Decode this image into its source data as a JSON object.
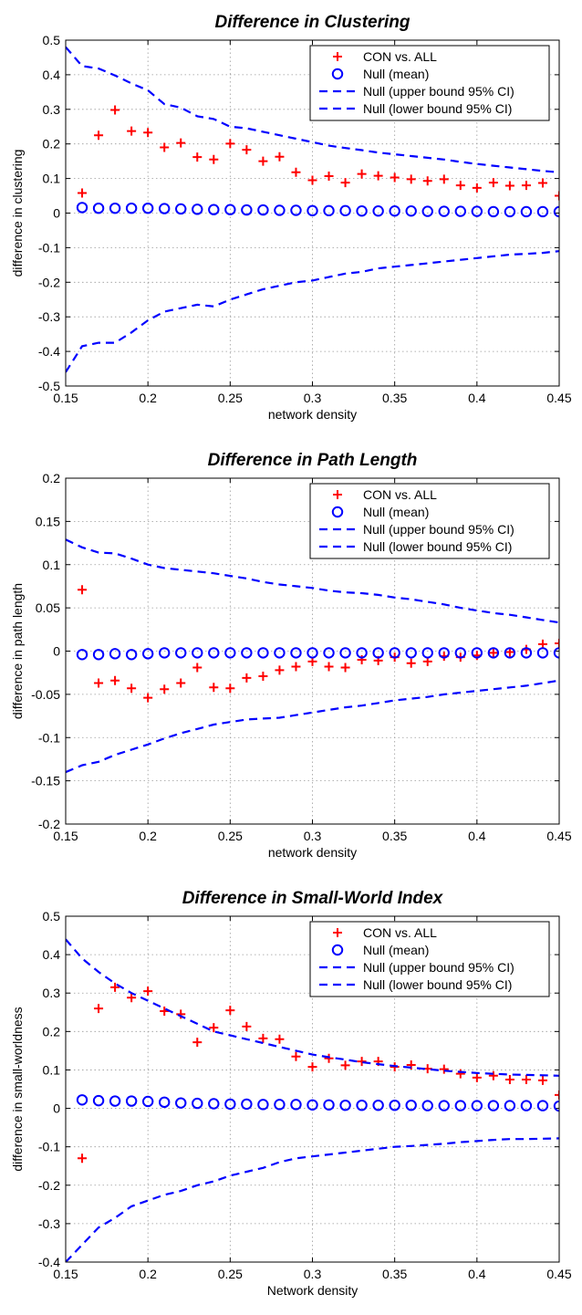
{
  "chart_data": [
    {
      "type": "scatter",
      "title": "Difference in Clustering",
      "xlabel": "network density",
      "ylabel": "difference in clustering",
      "xlim": [
        0.15,
        0.45
      ],
      "ylim": [
        -0.5,
        0.5
      ],
      "xticks": [
        "0.15",
        "0.2",
        "0.25",
        "0.3",
        "0.35",
        "0.4",
        "0.45"
      ],
      "yticks": [
        "-0.5",
        "-0.4",
        "-0.3",
        "-0.2",
        "-0.1",
        "0",
        "0.1",
        "0.2",
        "0.3",
        "0.4",
        "0.5"
      ],
      "grid": true,
      "legend_position": "top-right",
      "x": [
        0.16,
        0.17,
        0.18,
        0.19,
        0.2,
        0.21,
        0.22,
        0.23,
        0.24,
        0.25,
        0.26,
        0.27,
        0.28,
        0.29,
        0.3,
        0.31,
        0.32,
        0.33,
        0.34,
        0.35,
        0.36,
        0.37,
        0.38,
        0.39,
        0.4,
        0.41,
        0.42,
        0.43,
        0.44,
        0.45
      ],
      "series": [
        {
          "name": "CON vs. ALL",
          "marker": "plus",
          "color": "#ff0000",
          "values": [
            0.058,
            0.225,
            0.298,
            0.237,
            0.233,
            0.19,
            0.203,
            0.162,
            0.155,
            0.201,
            0.183,
            0.15,
            0.163,
            0.118,
            0.095,
            0.107,
            0.088,
            0.113,
            0.108,
            0.103,
            0.098,
            0.093,
            0.098,
            0.08,
            0.073,
            0.088,
            0.079,
            0.08,
            0.087,
            0.05
          ]
        },
        {
          "name": "Null (mean)",
          "marker": "circle",
          "color": "#0000ff",
          "values": [
            0.016,
            0.014,
            0.014,
            0.014,
            0.014,
            0.013,
            0.012,
            0.011,
            0.01,
            0.01,
            0.009,
            0.009,
            0.008,
            0.008,
            0.007,
            0.007,
            0.007,
            0.006,
            0.006,
            0.006,
            0.006,
            0.005,
            0.005,
            0.005,
            0.005,
            0.004,
            0.004,
            0.004,
            0.004,
            0.004
          ]
        },
        {
          "name": "Null (upper bound 95% CI)",
          "marker": "dashed-line",
          "color": "#0000ff",
          "x": [
            0.15,
            0.16,
            0.17,
            0.18,
            0.19,
            0.2,
            0.21,
            0.22,
            0.23,
            0.24,
            0.25,
            0.26,
            0.27,
            0.28,
            0.29,
            0.3,
            0.31,
            0.32,
            0.33,
            0.34,
            0.35,
            0.36,
            0.37,
            0.38,
            0.39,
            0.4,
            0.41,
            0.42,
            0.43,
            0.44,
            0.45
          ],
          "values": [
            0.48,
            0.425,
            0.418,
            0.398,
            0.375,
            0.355,
            0.315,
            0.305,
            0.28,
            0.272,
            0.25,
            0.245,
            0.235,
            0.225,
            0.215,
            0.205,
            0.195,
            0.188,
            0.182,
            0.175,
            0.17,
            0.165,
            0.16,
            0.155,
            0.148,
            0.142,
            0.137,
            0.132,
            0.127,
            0.122,
            0.118
          ]
        },
        {
          "name": "Null (lower bound 95% CI)",
          "marker": "dashed-line",
          "color": "#0000ff",
          "x": [
            0.15,
            0.16,
            0.17,
            0.18,
            0.19,
            0.2,
            0.21,
            0.22,
            0.23,
            0.24,
            0.25,
            0.26,
            0.27,
            0.28,
            0.29,
            0.3,
            0.31,
            0.32,
            0.33,
            0.34,
            0.35,
            0.36,
            0.37,
            0.38,
            0.39,
            0.4,
            0.41,
            0.42,
            0.43,
            0.44,
            0.45
          ],
          "values": [
            -0.46,
            -0.385,
            -0.375,
            -0.375,
            -0.345,
            -0.31,
            -0.285,
            -0.275,
            -0.265,
            -0.27,
            -0.25,
            -0.235,
            -0.22,
            -0.21,
            -0.2,
            -0.195,
            -0.185,
            -0.175,
            -0.17,
            -0.16,
            -0.155,
            -0.15,
            -0.145,
            -0.14,
            -0.135,
            -0.13,
            -0.125,
            -0.12,
            -0.118,
            -0.115,
            -0.11
          ]
        }
      ]
    },
    {
      "type": "scatter",
      "title": "Difference in Path Length",
      "xlabel": "network density",
      "ylabel": "difference in path length",
      "xlim": [
        0.15,
        0.45
      ],
      "ylim": [
        -0.2,
        0.2
      ],
      "xticks": [
        "0.15",
        "0.2",
        "0.25",
        "0.3",
        "0.35",
        "0.4",
        "0.45"
      ],
      "yticks": [
        "-0.2",
        "-0.15",
        "-0.1",
        "-0.05",
        "0",
        "0.05",
        "0.1",
        "0.15",
        "0.2"
      ],
      "grid": true,
      "legend_position": "top-right",
      "x": [
        0.16,
        0.17,
        0.18,
        0.19,
        0.2,
        0.21,
        0.22,
        0.23,
        0.24,
        0.25,
        0.26,
        0.27,
        0.28,
        0.29,
        0.3,
        0.31,
        0.32,
        0.33,
        0.34,
        0.35,
        0.36,
        0.37,
        0.38,
        0.39,
        0.4,
        0.41,
        0.42,
        0.43,
        0.44,
        0.45
      ],
      "series": [
        {
          "name": "CON vs. ALL",
          "marker": "plus",
          "color": "#ff0000",
          "values": [
            0.071,
            -0.037,
            -0.034,
            -0.043,
            -0.054,
            -0.044,
            -0.037,
            -0.019,
            -0.042,
            -0.043,
            -0.031,
            -0.029,
            -0.022,
            -0.018,
            -0.012,
            -0.018,
            -0.019,
            -0.01,
            -0.011,
            -0.007,
            -0.014,
            -0.012,
            -0.006,
            -0.007,
            -0.005,
            -0.002,
            -0.001,
            0.002,
            0.008,
            0.009
          ]
        },
        {
          "name": "Null (mean)",
          "marker": "circle",
          "color": "#0000ff",
          "values": [
            -0.004,
            -0.004,
            -0.003,
            -0.004,
            -0.003,
            -0.002,
            -0.002,
            -0.002,
            -0.002,
            -0.002,
            -0.002,
            -0.002,
            -0.002,
            -0.002,
            -0.002,
            -0.002,
            -0.002,
            -0.002,
            -0.002,
            -0.002,
            -0.002,
            -0.002,
            -0.002,
            -0.002,
            -0.002,
            -0.002,
            -0.002,
            -0.002,
            -0.002,
            -0.002
          ]
        },
        {
          "name": "Null (upper bound 95% CI)",
          "marker": "dashed-line",
          "color": "#0000ff",
          "x": [
            0.15,
            0.16,
            0.17,
            0.18,
            0.19,
            0.2,
            0.21,
            0.22,
            0.23,
            0.24,
            0.25,
            0.26,
            0.27,
            0.28,
            0.29,
            0.3,
            0.31,
            0.32,
            0.33,
            0.34,
            0.35,
            0.36,
            0.37,
            0.38,
            0.39,
            0.4,
            0.41,
            0.42,
            0.43,
            0.44,
            0.45
          ],
          "values": [
            0.129,
            0.12,
            0.114,
            0.113,
            0.107,
            0.1,
            0.096,
            0.094,
            0.092,
            0.09,
            0.087,
            0.084,
            0.08,
            0.077,
            0.075,
            0.073,
            0.07,
            0.068,
            0.067,
            0.065,
            0.062,
            0.06,
            0.057,
            0.054,
            0.05,
            0.047,
            0.044,
            0.042,
            0.039,
            0.036,
            0.033
          ]
        },
        {
          "name": "Null (lower bound 95% CI)",
          "marker": "dashed-line",
          "color": "#0000ff",
          "x": [
            0.15,
            0.16,
            0.17,
            0.18,
            0.19,
            0.2,
            0.21,
            0.22,
            0.23,
            0.24,
            0.25,
            0.26,
            0.27,
            0.28,
            0.29,
            0.3,
            0.31,
            0.32,
            0.33,
            0.34,
            0.35,
            0.36,
            0.37,
            0.38,
            0.39,
            0.4,
            0.41,
            0.42,
            0.43,
            0.44,
            0.45
          ],
          "values": [
            -0.14,
            -0.132,
            -0.128,
            -0.12,
            -0.114,
            -0.108,
            -0.101,
            -0.095,
            -0.09,
            -0.085,
            -0.082,
            -0.079,
            -0.078,
            -0.077,
            -0.074,
            -0.071,
            -0.068,
            -0.065,
            -0.063,
            -0.06,
            -0.057,
            -0.055,
            -0.053,
            -0.05,
            -0.048,
            -0.046,
            -0.044,
            -0.042,
            -0.04,
            -0.037,
            -0.034
          ]
        }
      ]
    },
    {
      "type": "scatter",
      "title": "Difference in Small-World Index",
      "xlabel": "Network density",
      "ylabel": "difference in small-worldness",
      "xlim": [
        0.15,
        0.45
      ],
      "ylim": [
        -0.4,
        0.5
      ],
      "xticks": [
        "0.15",
        "0.2",
        "0.25",
        "0.3",
        "0.35",
        "0.4",
        "0.45"
      ],
      "yticks": [
        "-0.4",
        "-0.3",
        "-0.2",
        "-0.1",
        "0",
        "0.1",
        "0.2",
        "0.3",
        "0.4",
        "0.5"
      ],
      "grid": true,
      "legend_position": "top-right",
      "x": [
        0.16,
        0.17,
        0.18,
        0.19,
        0.2,
        0.21,
        0.22,
        0.23,
        0.24,
        0.25,
        0.26,
        0.27,
        0.28,
        0.29,
        0.3,
        0.31,
        0.32,
        0.33,
        0.34,
        0.35,
        0.36,
        0.37,
        0.38,
        0.39,
        0.4,
        0.41,
        0.42,
        0.43,
        0.44,
        0.45
      ],
      "series": [
        {
          "name": "CON vs. ALL",
          "marker": "plus",
          "color": "#ff0000",
          "values": [
            -0.13,
            0.26,
            0.315,
            0.288,
            0.305,
            0.253,
            0.245,
            0.172,
            0.21,
            0.255,
            0.213,
            0.182,
            0.18,
            0.135,
            0.108,
            0.13,
            0.112,
            0.122,
            0.122,
            0.108,
            0.113,
            0.103,
            0.102,
            0.09,
            0.08,
            0.085,
            0.075,
            0.075,
            0.073,
            0.035
          ]
        },
        {
          "name": "Null (mean)",
          "marker": "circle",
          "color": "#0000ff",
          "values": [
            0.022,
            0.02,
            0.019,
            0.019,
            0.018,
            0.016,
            0.014,
            0.013,
            0.012,
            0.011,
            0.011,
            0.01,
            0.01,
            0.01,
            0.009,
            0.009,
            0.008,
            0.008,
            0.008,
            0.008,
            0.008,
            0.007,
            0.007,
            0.007,
            0.007,
            0.007,
            0.007,
            0.007,
            0.007,
            0.006
          ]
        },
        {
          "name": "Null (upper bound 95% CI)",
          "marker": "dashed-line",
          "color": "#0000ff",
          "x": [
            0.15,
            0.16,
            0.17,
            0.18,
            0.19,
            0.2,
            0.21,
            0.22,
            0.23,
            0.24,
            0.25,
            0.26,
            0.27,
            0.28,
            0.29,
            0.3,
            0.31,
            0.32,
            0.33,
            0.34,
            0.35,
            0.36,
            0.37,
            0.38,
            0.39,
            0.4,
            0.41,
            0.42,
            0.43,
            0.44,
            0.45
          ],
          "values": [
            0.44,
            0.39,
            0.355,
            0.325,
            0.3,
            0.28,
            0.26,
            0.24,
            0.22,
            0.2,
            0.19,
            0.18,
            0.17,
            0.16,
            0.15,
            0.14,
            0.133,
            0.127,
            0.12,
            0.115,
            0.11,
            0.106,
            0.102,
            0.098,
            0.095,
            0.092,
            0.09,
            0.088,
            0.087,
            0.086,
            0.085
          ]
        },
        {
          "name": "Null (lower bound 95% CI)",
          "marker": "dashed-line",
          "color": "#0000ff",
          "x": [
            0.15,
            0.16,
            0.17,
            0.18,
            0.19,
            0.2,
            0.21,
            0.22,
            0.23,
            0.24,
            0.25,
            0.26,
            0.27,
            0.28,
            0.29,
            0.3,
            0.31,
            0.32,
            0.33,
            0.34,
            0.35,
            0.36,
            0.37,
            0.38,
            0.39,
            0.4,
            0.41,
            0.42,
            0.43,
            0.44,
            0.45
          ],
          "values": [
            -0.4,
            -0.355,
            -0.31,
            -0.285,
            -0.255,
            -0.24,
            -0.225,
            -0.215,
            -0.2,
            -0.19,
            -0.175,
            -0.165,
            -0.155,
            -0.14,
            -0.13,
            -0.125,
            -0.12,
            -0.115,
            -0.11,
            -0.105,
            -0.1,
            -0.098,
            -0.095,
            -0.092,
            -0.088,
            -0.085,
            -0.082,
            -0.08,
            -0.08,
            -0.079,
            -0.078
          ]
        }
      ]
    }
  ]
}
